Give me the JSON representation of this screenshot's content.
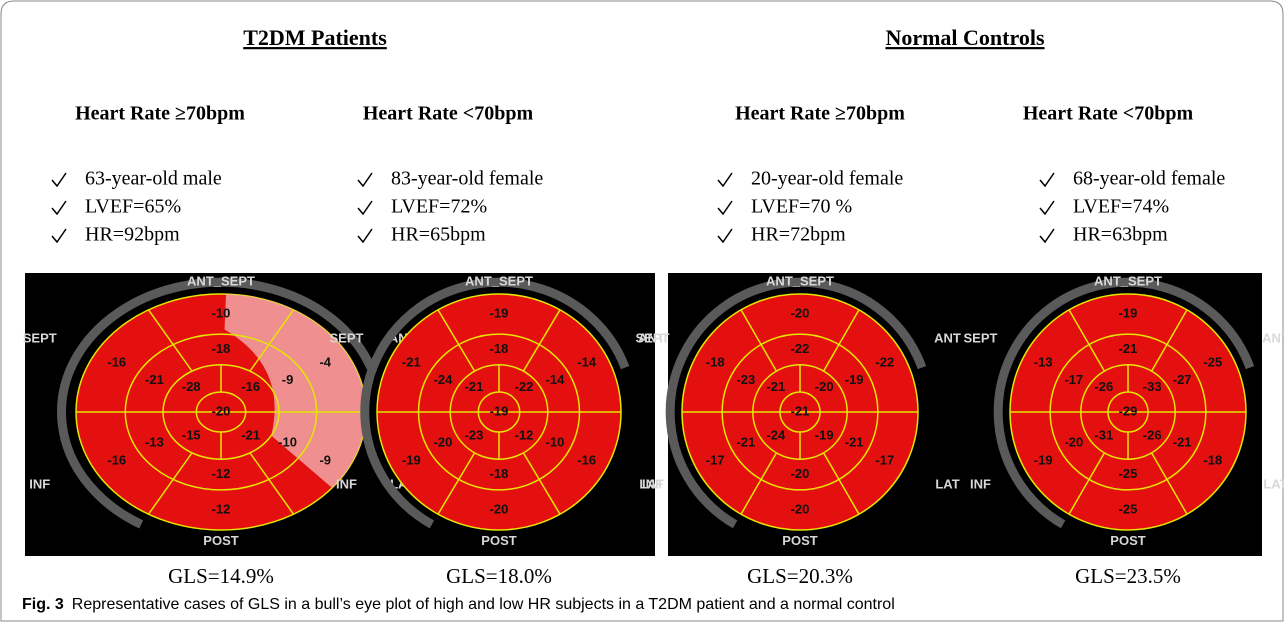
{
  "groups": [
    "T2DM Patients",
    "Normal Controls"
  ],
  "segment_labels": [
    "ANT_SEPT",
    "ANT",
    "LAT",
    "POST",
    "INF",
    "SEPT"
  ],
  "panels": [
    {
      "heading": "Heart Rate ≥70bpm",
      "bullets": [
        "63-year-old male",
        "LVEF=65%",
        "HR=92bpm"
      ],
      "basal": [
        "-10",
        "-4",
        "-9",
        "-12",
        "-16",
        "-16"
      ],
      "mid": [
        "-18",
        "-9",
        "-10",
        "-12",
        "-13",
        "-21"
      ],
      "apical": [
        "-28",
        "-16",
        "-21",
        "-15"
      ],
      "apex": "-20",
      "gls": "GLS=14.9%"
    },
    {
      "heading": "Heart Rate <70bpm",
      "bullets": [
        "83-year-old female",
        "LVEF=72%",
        "HR=65bpm"
      ],
      "basal": [
        "-19",
        "-14",
        "-16",
        "-20",
        "-19",
        "-21"
      ],
      "mid": [
        "-18",
        "-14",
        "-10",
        "-18",
        "-20",
        "-24"
      ],
      "apical": [
        "-21",
        "-22",
        "-12",
        "-23"
      ],
      "apex": "-19",
      "gls": "GLS=18.0%"
    },
    {
      "heading": "Heart Rate ≥70bpm",
      "bullets": [
        "20-year-old female",
        "LVEF=70 %",
        "HR=72bpm"
      ],
      "basal": [
        "-20",
        "-22",
        "-17",
        "-20",
        "-17",
        "-18"
      ],
      "mid": [
        "-22",
        "-19",
        "-21",
        "-20",
        "-21",
        "-23"
      ],
      "apical": [
        "-21",
        "-20",
        "-19",
        "-24"
      ],
      "apex": "-21",
      "gls": "GLS=20.3%"
    },
    {
      "heading": "Heart Rate <70bpm",
      "bullets": [
        "68-year-old female",
        "LVEF=74%",
        "HR=63bpm"
      ],
      "basal": [
        "-19",
        "-25",
        "-18",
        "-25",
        "-19",
        "-13"
      ],
      "mid": [
        "-21",
        "-27",
        "-21",
        "-25",
        "-20",
        "-17"
      ],
      "apical": [
        "-26",
        "-33",
        "-26",
        "-31"
      ],
      "apex": "-29",
      "gls": "GLS=23.5%"
    }
  ],
  "caption": {
    "label": "Fig. 3",
    "text": "Representative cases of GLS in a bull’s eye plot of high and low HR subjects in a T2DM patient and a normal control"
  }
}
